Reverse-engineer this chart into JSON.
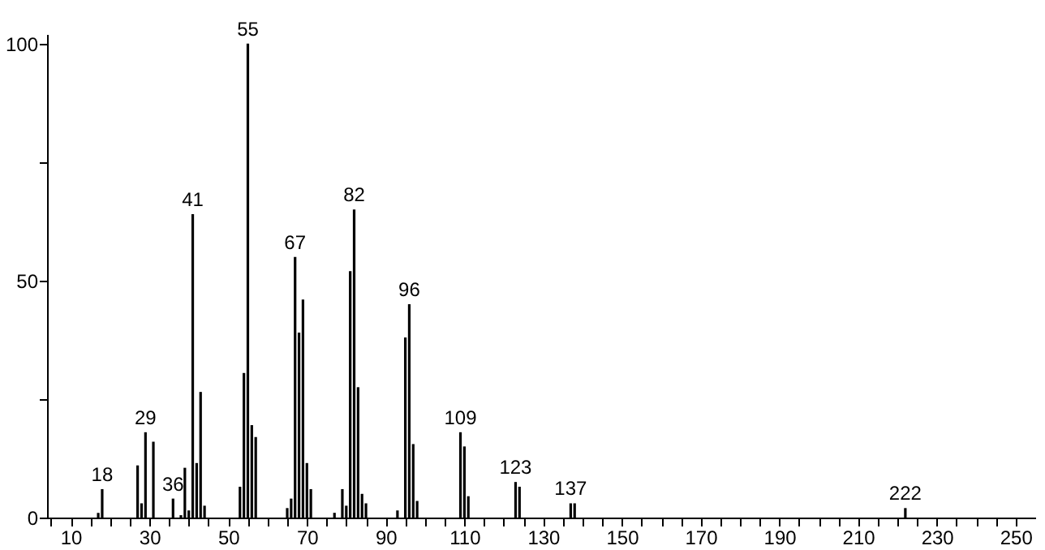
{
  "chart_data": {
    "type": "bar",
    "color": "#000000",
    "x": [
      17,
      18,
      27,
      28,
      29,
      31,
      36,
      38,
      39,
      40,
      41,
      42,
      43,
      44,
      53,
      54,
      55,
      56,
      57,
      65,
      66,
      67,
      68,
      69,
      70,
      71,
      77,
      79,
      80,
      81,
      82,
      83,
      84,
      85,
      93,
      95,
      96,
      97,
      98,
      109,
      110,
      111,
      123,
      124,
      137,
      138,
      222
    ],
    "values": [
      1,
      6,
      11,
      3,
      18,
      16,
      4,
      0.5,
      10.5,
      1.5,
      64,
      11.5,
      26.5,
      2.5,
      6.5,
      30.5,
      100,
      19.5,
      17,
      2,
      4,
      55,
      39,
      46,
      11.5,
      6,
      1,
      6,
      2.5,
      52,
      65,
      27.5,
      5,
      3,
      1.5,
      38,
      45,
      15.5,
      3.5,
      18,
      15,
      4.5,
      7.5,
      6.5,
      3,
      3,
      2
    ],
    "xlim": [
      4,
      255
    ],
    "ylim": [
      0,
      102
    ],
    "xticks": [
      {
        "value": 5,
        "label": null
      },
      10,
      {
        "value": 15,
        "label": null
      },
      {
        "value": 20,
        "label": null
      },
      {
        "value": 25,
        "label": null
      },
      30,
      {
        "value": 35,
        "label": null
      },
      {
        "value": 40,
        "label": null
      },
      {
        "value": 45,
        "label": null
      },
      50,
      {
        "value": 55,
        "label": null
      },
      {
        "value": 60,
        "label": null
      },
      {
        "value": 65,
        "label": null
      },
      70,
      {
        "value": 75,
        "label": null
      },
      {
        "value": 80,
        "label": null
      },
      {
        "value": 85,
        "label": null
      },
      90,
      {
        "value": 95,
        "label": null
      },
      {
        "value": 100,
        "label": null
      },
      {
        "value": 105,
        "label": null
      },
      110,
      {
        "value": 115,
        "label": null
      },
      {
        "value": 120,
        "label": null
      },
      {
        "value": 125,
        "label": null
      },
      130,
      {
        "value": 135,
        "label": null
      },
      {
        "value": 140,
        "label": null
      },
      {
        "value": 145,
        "label": null
      },
      150,
      {
        "value": 155,
        "label": null
      },
      {
        "value": 160,
        "label": null
      },
      {
        "value": 165,
        "label": null
      },
      170,
      {
        "value": 175,
        "label": null
      },
      {
        "value": 180,
        "label": null
      },
      {
        "value": 185,
        "label": null
      },
      190,
      {
        "value": 195,
        "label": null
      },
      {
        "value": 200,
        "label": null
      },
      {
        "value": 205,
        "label": null
      },
      210,
      {
        "value": 215,
        "label": null
      },
      {
        "value": 220,
        "label": null
      },
      {
        "value": 225,
        "label": null
      },
      230,
      {
        "value": 235,
        "label": null
      },
      {
        "value": 240,
        "label": null
      },
      {
        "value": 245,
        "label": null
      },
      250
    ],
    "yticks": [
      0,
      {
        "value": 25,
        "label": null
      },
      50,
      {
        "value": 75,
        "label": null
      },
      100
    ],
    "grid": false,
    "annotations": [
      {
        "text": "18",
        "x": 18,
        "y": 6
      },
      {
        "text": "29",
        "x": 29,
        "y": 18
      },
      {
        "text": "36",
        "x": 36,
        "y": 4
      },
      {
        "text": "41",
        "x": 41,
        "y": 64
      },
      {
        "text": "55",
        "x": 55,
        "y": 100
      },
      {
        "text": "67",
        "x": 67,
        "y": 55
      },
      {
        "text": "82",
        "x": 82,
        "y": 65
      },
      {
        "text": "96",
        "x": 96,
        "y": 45
      },
      {
        "text": "109",
        "x": 109,
        "y": 18
      },
      {
        "text": "123",
        "x": 123,
        "y": 7.5
      },
      {
        "text": "137",
        "x": 137,
        "y": 3
      },
      {
        "text": "222",
        "x": 222,
        "y": 2
      }
    ]
  }
}
